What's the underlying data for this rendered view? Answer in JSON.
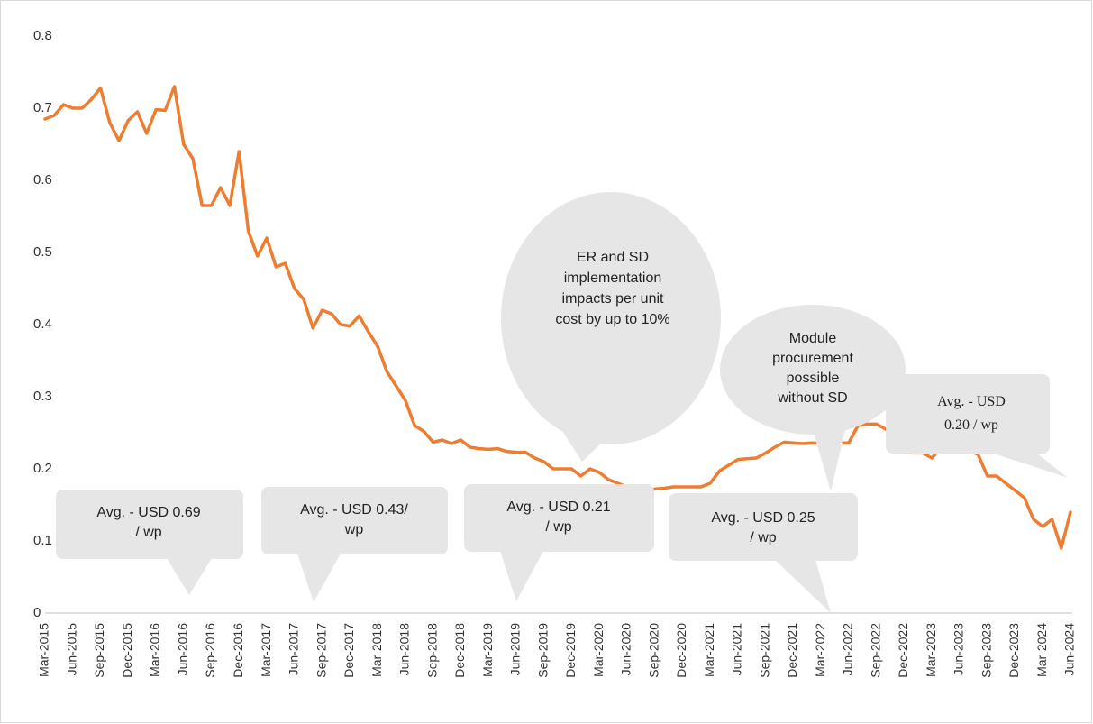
{
  "chart_data": {
    "type": "line",
    "color": "#ed7d31",
    "ylim": [
      0,
      0.8
    ],
    "yticks": [
      0,
      0.1,
      0.2,
      0.3,
      0.4,
      0.5,
      0.6,
      0.7,
      0.8
    ],
    "categories": [
      "Mar-2015",
      null,
      null,
      "Jun-2015",
      null,
      null,
      "Sep-2015",
      null,
      null,
      "Dec-2015",
      null,
      null,
      "Mar-2016",
      null,
      null,
      "Jun-2016",
      null,
      null,
      "Sep-2016",
      null,
      null,
      "Dec-2016",
      null,
      null,
      "Mar-2017",
      null,
      null,
      "Jun-2017",
      null,
      null,
      "Sep-2017",
      null,
      null,
      "Dec-2017",
      null,
      null,
      "Mar-2018",
      null,
      null,
      "Jun-2018",
      null,
      null,
      "Sep-2018",
      null,
      null,
      "Dec-2018",
      null,
      null,
      "Mar-2019",
      null,
      null,
      "Jun-2019",
      null,
      null,
      "Sep-2019",
      null,
      null,
      "Dec-2019",
      null,
      null,
      "Mar-2020",
      null,
      null,
      "Jun-2020",
      null,
      null,
      "Sep-2020",
      null,
      null,
      "Dec-2020",
      null,
      null,
      "Mar-2021",
      null,
      null,
      "Jun-2021",
      null,
      null,
      "Sep-2021",
      null,
      null,
      "Dec-2021",
      null,
      null,
      "Mar-2022",
      null,
      null,
      "Jun-2022",
      null,
      null,
      "Sep-2022",
      null,
      null,
      "Dec-2022",
      null,
      null,
      "Mar-2023",
      null,
      null,
      "Jun-2023",
      null,
      null,
      "Sep-2023",
      null,
      null,
      "Dec-2023",
      null,
      null,
      "Mar-2024",
      null,
      null,
      "Jun-2024"
    ],
    "values": [
      0.685,
      0.69,
      0.705,
      0.7,
      0.7,
      0.712,
      0.728,
      0.68,
      0.655,
      0.683,
      0.695,
      0.665,
      0.698,
      0.697,
      0.73,
      0.65,
      0.63,
      0.565,
      0.565,
      0.59,
      0.565,
      0.64,
      0.53,
      0.495,
      0.52,
      0.48,
      0.485,
      0.45,
      0.435,
      0.395,
      0.42,
      0.415,
      0.4,
      0.398,
      0.412,
      0.39,
      0.37,
      0.335,
      0.315,
      0.295,
      0.26,
      0.252,
      0.237,
      0.24,
      0.235,
      0.24,
      0.23,
      0.228,
      0.227,
      0.228,
      0.224,
      0.223,
      0.223,
      0.215,
      0.21,
      0.2,
      0.2,
      0.2,
      0.19,
      0.2,
      0.195,
      0.185,
      0.18,
      0.175,
      0.17,
      0.168,
      0.172,
      0.173,
      0.175,
      0.175,
      0.175,
      0.175,
      0.18,
      0.197,
      0.205,
      0.213,
      0.214,
      0.215,
      0.222,
      0.23,
      0.237,
      0.236,
      0.235,
      0.236,
      0.235,
      0.236,
      0.236,
      0.236,
      0.26,
      0.262,
      0.262,
      0.255,
      0.24,
      0.225,
      0.222,
      0.222,
      0.215,
      0.23,
      0.23,
      0.23,
      0.225,
      0.22,
      0.19,
      0.19,
      0.18,
      0.17,
      0.16,
      0.13,
      0.12,
      0.13,
      0.09,
      0.14
    ],
    "annotations": [
      {
        "lines": [
          "Avg. - USD 0.69",
          "/ wp"
        ]
      },
      {
        "lines": [
          "Avg. - USD 0.43/",
          "wp"
        ]
      },
      {
        "lines": [
          "Avg. - USD 0.21",
          "/ wp"
        ]
      },
      {
        "lines": [
          "Avg. - USD 0.25",
          "/ wp"
        ]
      },
      {
        "lines": [
          "ER and SD",
          "implementation",
          "impacts per unit",
          "cost by up to 10%"
        ]
      },
      {
        "lines": [
          "Module",
          "procurement",
          "possible",
          "without SD"
        ]
      },
      {
        "lines": [
          "Avg. - USD",
          "0.20 / wp"
        ]
      }
    ]
  }
}
